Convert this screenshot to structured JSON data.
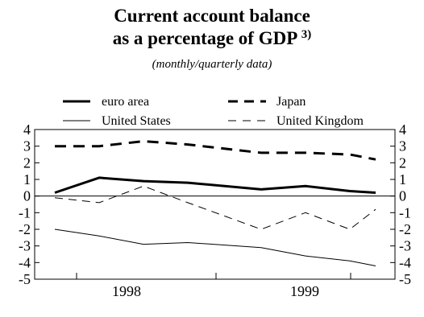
{
  "title_line1": "Current account balance",
  "title_line2": "as a percentage of GDP",
  "title_note": "3)",
  "subtitle": "(monthly/quarterly data)",
  "chart_data": {
    "type": "line",
    "x": [
      "1998-Q1",
      "1998-Q2",
      "1998-Q3",
      "1998-Q4",
      "1999-Q1",
      "1999-Q2",
      "1999-Q3",
      "1999-Q4"
    ],
    "x_tick_labels": [
      "1998",
      "1999"
    ],
    "ylim": [
      -5,
      4
    ],
    "y_ticks": [
      "4",
      "3",
      "2",
      "1",
      "0",
      "-1",
      "-2",
      "-3",
      "-4",
      "-5"
    ],
    "grid": false,
    "legend_placement": "top",
    "series": [
      {
        "name": "euro area",
        "style": "solid-thick",
        "values": [
          0.2,
          1.1,
          0.9,
          0.8,
          0.4,
          0.6,
          0.3,
          0.2
        ]
      },
      {
        "name": "Japan",
        "style": "dashed-thick",
        "values": [
          3.0,
          3.0,
          3.3,
          3.1,
          2.6,
          2.6,
          2.5,
          2.2
        ]
      },
      {
        "name": "United States",
        "style": "solid-thin",
        "values": [
          -2.0,
          -2.4,
          -2.9,
          -2.8,
          -3.1,
          -3.6,
          -3.9,
          -4.2
        ]
      },
      {
        "name": "United Kingdom",
        "style": "dashed-thin",
        "values": [
          -0.1,
          -0.4,
          0.6,
          -0.4,
          -2.0,
          -1.0,
          -2.0,
          -0.8
        ]
      }
    ]
  }
}
